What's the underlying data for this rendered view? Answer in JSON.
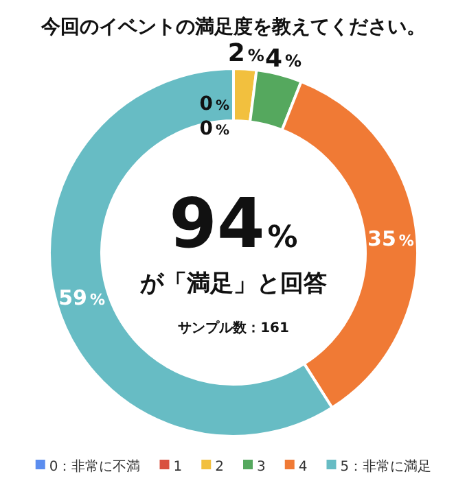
{
  "chart_data": {
    "type": "donut",
    "title": "今回のイベントの満足度を教えてください。",
    "categories": [
      "0：非常に不満",
      "1",
      "2",
      "3",
      "4",
      "5：非常に満足"
    ],
    "values": [
      0,
      0,
      2,
      4,
      35,
      59
    ],
    "colors": [
      "#5b8def",
      "#d9503f",
      "#f2c03e",
      "#55a85e",
      "#f07a35",
      "#67bcc4"
    ],
    "value_labels": [
      "0%",
      "0%",
      "2%",
      "4%",
      "35%",
      "59%"
    ],
    "annotations": [
      "94%",
      "が「満足」と回答",
      "サンプル数：161"
    ],
    "legend": "bottom"
  }
}
